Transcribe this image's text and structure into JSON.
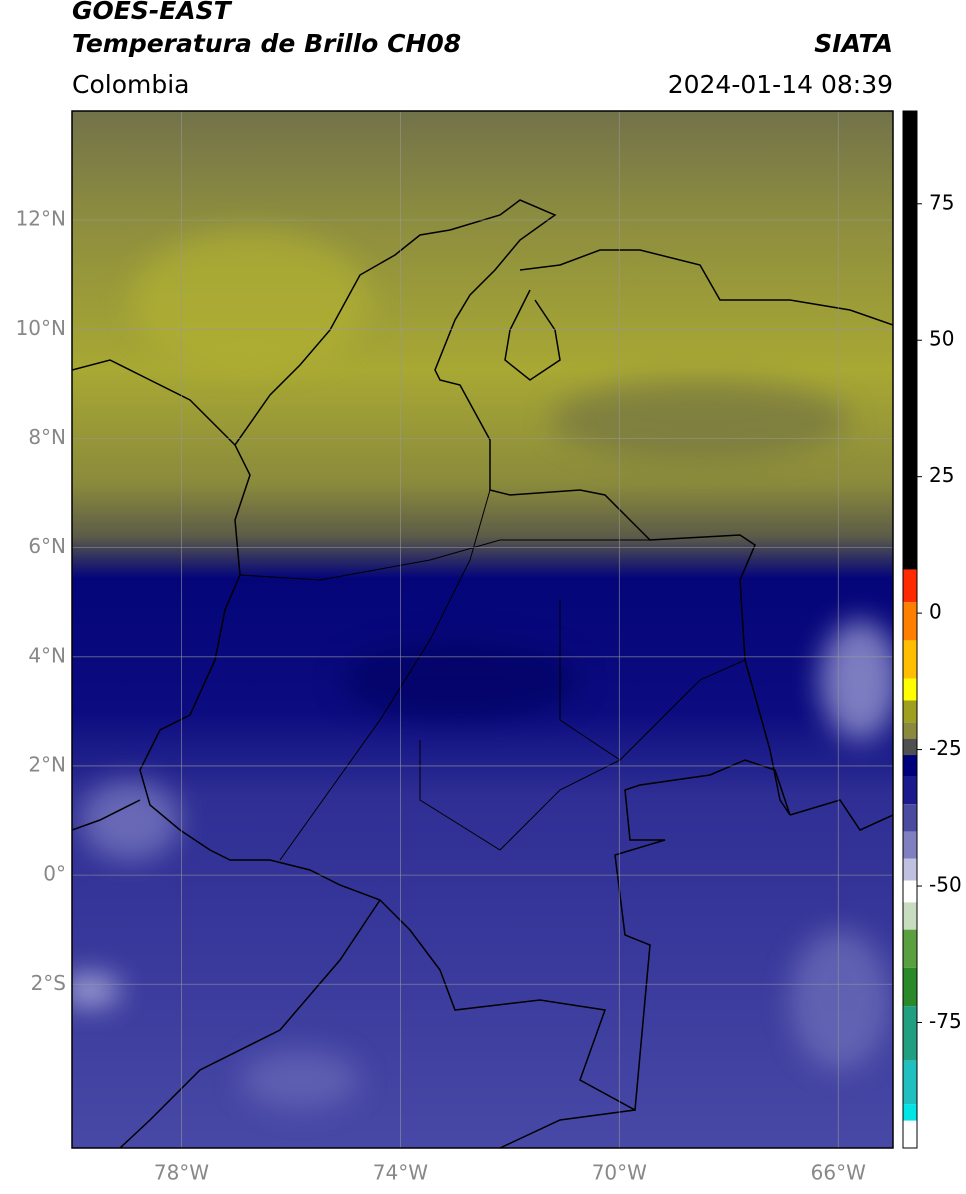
{
  "header": {
    "title": "GOES-EAST",
    "subtitle": "Temperatura de Brillo CH08",
    "source": "SIATA",
    "region": "Colombia",
    "datetime": "2024-01-14 08:39"
  },
  "map": {
    "xlim": [
      -80,
      -65
    ],
    "ylim": [
      -5,
      14
    ],
    "xticks": [
      {
        "value": -78,
        "label": "78°W"
      },
      {
        "value": -74,
        "label": "74°W"
      },
      {
        "value": -70,
        "label": "70°W"
      },
      {
        "value": -66,
        "label": "66°W"
      }
    ],
    "yticks": [
      {
        "value": 12,
        "label": "12°N"
      },
      {
        "value": 10,
        "label": "10°N"
      },
      {
        "value": 8,
        "label": "8°N"
      },
      {
        "value": 6,
        "label": "6°N"
      },
      {
        "value": 4,
        "label": "4°N"
      },
      {
        "value": 2,
        "label": "2°N"
      },
      {
        "value": 0,
        "label": "0°"
      },
      {
        "value": -2,
        "label": "2°S"
      }
    ],
    "grid": true
  },
  "colorbar": {
    "lim": [
      -98,
      92
    ],
    "ticks": [
      75,
      50,
      25,
      0,
      -25,
      -50,
      -75
    ],
    "segments": [
      {
        "value": 92,
        "color": "#000000"
      },
      {
        "value": 8,
        "color": "#ff2a00"
      },
      {
        "value": 2,
        "color": "#ff7f00"
      },
      {
        "value": -5,
        "color": "#ffbf00"
      },
      {
        "value": -12,
        "color": "#ffff00"
      },
      {
        "value": -16,
        "color": "#a0a020"
      },
      {
        "value": -20,
        "color": "#8a8a3a"
      },
      {
        "value": -23,
        "color": "#505050"
      },
      {
        "value": -26,
        "color": "#00007a"
      },
      {
        "value": -30,
        "color": "#1a1a8c"
      },
      {
        "value": -35,
        "color": "#4a4aa0"
      },
      {
        "value": -40,
        "color": "#8080c0"
      },
      {
        "value": -45,
        "color": "#c0c0e0"
      },
      {
        "value": -49,
        "color": "#ffffff"
      },
      {
        "value": -53,
        "color": "#c8dcc0"
      },
      {
        "value": -58,
        "color": "#5aa040"
      },
      {
        "value": -65,
        "color": "#2a8a2a"
      },
      {
        "value": -72,
        "color": "#20a080"
      },
      {
        "value": -82,
        "color": "#20c0c0"
      },
      {
        "value": -90,
        "color": "#00e5e5"
      },
      {
        "value": -93,
        "color": "#ffffff"
      }
    ]
  }
}
